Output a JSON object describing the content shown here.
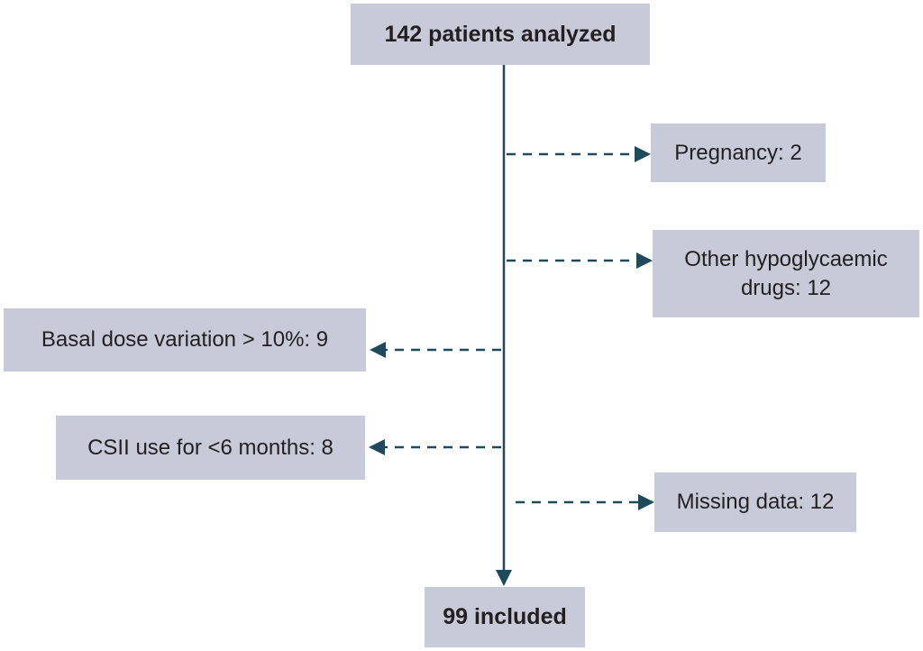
{
  "nodes": [
    {
      "label": "142 patients analyzed"
    },
    {
      "label": "Pregnancy: 2"
    },
    {
      "label": "Other hypoglycaemic drugs: 12"
    },
    {
      "label": "Basal dose variation > 10%: 9"
    },
    {
      "label": "CSII use for <6 months: 8"
    },
    {
      "label": "Missing data: 12"
    },
    {
      "label": "99 included"
    }
  ]
}
